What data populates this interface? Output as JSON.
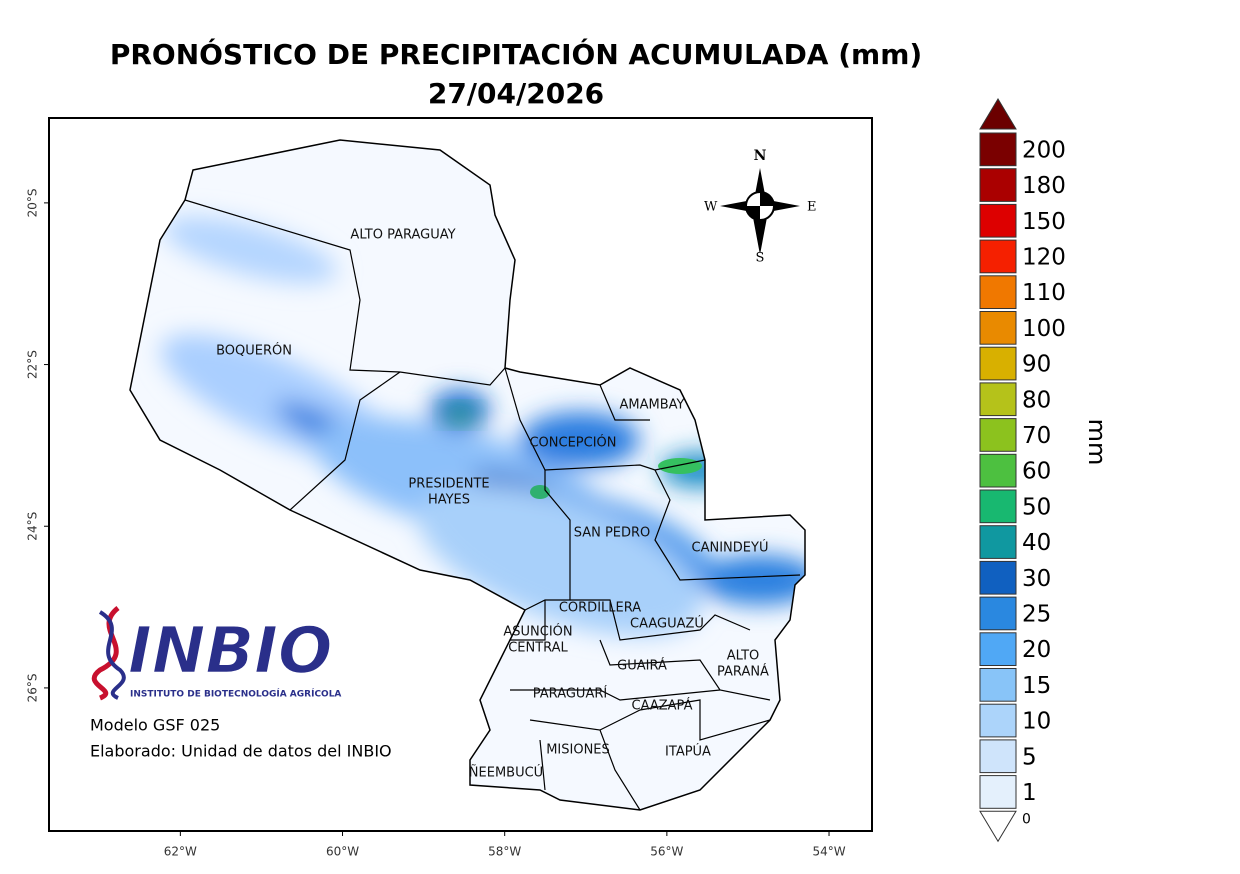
{
  "title": "PRONÓSTICO DE PRECIPITACIÓN ACUMULADA (mm)",
  "date": "27/04/2026",
  "map": {
    "xlim": [
      -63.62,
      -53.47
    ],
    "ylim": [
      -27.77,
      -18.95
    ],
    "xticks": [
      {
        "value": -62,
        "label": "62°W"
      },
      {
        "value": -60,
        "label": "60°W"
      },
      {
        "value": -58,
        "label": "58°W"
      },
      {
        "value": -56,
        "label": "56°W"
      },
      {
        "value": -54,
        "label": "54°W"
      }
    ],
    "yticks": [
      {
        "value": -20,
        "label": "20°S"
      },
      {
        "value": -22,
        "label": "22°S"
      },
      {
        "value": -24,
        "label": "24°S"
      },
      {
        "value": -26,
        "label": "26°S"
      }
    ],
    "departments": [
      [
        "ALTO PARAGUAY"
      ],
      [
        "BOQUERÓN"
      ],
      [
        "PRESIDENTE",
        "HAYES"
      ],
      [
        "CONCEPCIÓN"
      ],
      [
        "AMAMBAY"
      ],
      [
        "SAN PEDRO"
      ],
      [
        "CANINDEYÚ"
      ],
      [
        "CORDILLERA"
      ],
      [
        "CAAGUAZÚ"
      ],
      [
        "ASUNCIÓN",
        "CENTRAL"
      ],
      [
        "GUAIRÁ"
      ],
      [
        "ALTO",
        "PARANÁ"
      ],
      [
        "PARAGUARÍ"
      ],
      [
        "CAAZAPÁ"
      ],
      [
        "MISIONES"
      ],
      [
        "ITAPÚA"
      ],
      [
        "ÑEEMBUCÚ"
      ]
    ],
    "compass": {
      "n": "N",
      "s": "S",
      "e": "E",
      "w": "W"
    }
  },
  "logo": {
    "name": "INBIO",
    "subtitle": "INSTITUTO DE BIOTECNOLOGÍA AGRÍCOLA"
  },
  "notes": [
    "Modelo GSF 025",
    "Elaborado: Unidad de datos del INBIO"
  ],
  "legend": {
    "unit": "mm",
    "over_color": "#6b0000",
    "under_label": 0,
    "items": [
      {
        "label": 200,
        "color": "#7a0000"
      },
      {
        "label": 180,
        "color": "#aa0000"
      },
      {
        "label": 150,
        "color": "#dd0000"
      },
      {
        "label": 120,
        "color": "#f52000"
      },
      {
        "label": 110,
        "color": "#f07800"
      },
      {
        "label": 100,
        "color": "#e98a00"
      },
      {
        "label": 90,
        "color": "#d8b000"
      },
      {
        "label": 80,
        "color": "#b5c21a"
      },
      {
        "label": 70,
        "color": "#8cc21e"
      },
      {
        "label": 60,
        "color": "#4dc040"
      },
      {
        "label": 50,
        "color": "#18b870"
      },
      {
        "label": 40,
        "color": "#1098a0"
      },
      {
        "label": 30,
        "color": "#1060c0"
      },
      {
        "label": 25,
        "color": "#2a88e0"
      },
      {
        "label": 20,
        "color": "#50a8f5"
      },
      {
        "label": 15,
        "color": "#88c4f8"
      },
      {
        "label": 10,
        "color": "#acd4fa"
      },
      {
        "label": 5,
        "color": "#cfe4fb"
      },
      {
        "label": 1,
        "color": "#e4f0fc"
      }
    ]
  }
}
